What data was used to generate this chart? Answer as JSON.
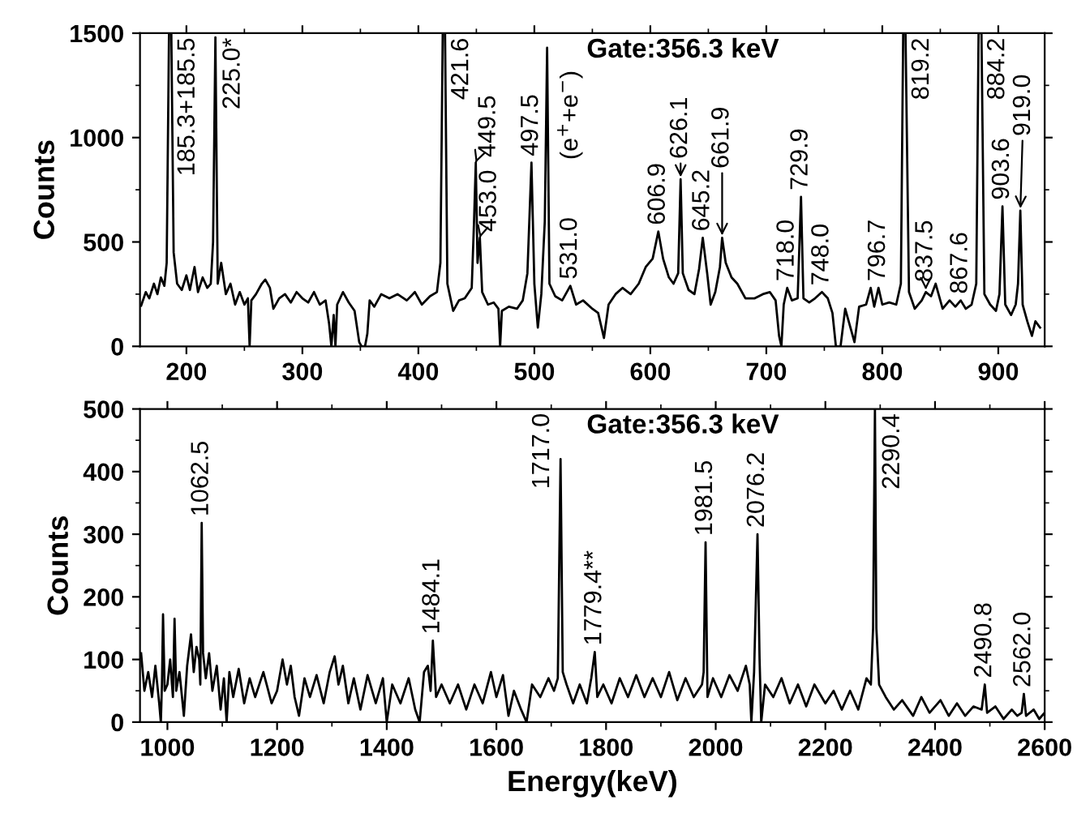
{
  "chart_data": [
    {
      "type": "line",
      "ylabel": "Counts",
      "xlim": [
        160,
        940
      ],
      "ylim": [
        0,
        1500
      ],
      "xticks": [
        200,
        300,
        400,
        500,
        600,
        700,
        800,
        900
      ],
      "yticks": [
        0,
        500,
        1000,
        1500
      ],
      "grid": false,
      "legend": false,
      "marker": "none",
      "line_style": "solid",
      "color": "#000000",
      "x": [
        161,
        165,
        168,
        172,
        175,
        178,
        181,
        183,
        185,
        187,
        189,
        192,
        196,
        200,
        203,
        207,
        210,
        214,
        218,
        221,
        223,
        225,
        227,
        230,
        234,
        238,
        242,
        246,
        250,
        253,
        254.5,
        256,
        260,
        265,
        268,
        272,
        275,
        280,
        285,
        290,
        295,
        300,
        305,
        310,
        315,
        320,
        323,
        325,
        327,
        328.5,
        330,
        335,
        340,
        345,
        349,
        351,
        354,
        356,
        358,
        362,
        368,
        375,
        382,
        390,
        397,
        403,
        410,
        416,
        419,
        421,
        423,
        425,
        430,
        435,
        440,
        446,
        448,
        449.5,
        451,
        453,
        455,
        460,
        465,
        469,
        470.5,
        472,
        478,
        485,
        490,
        494,
        497.5,
        500,
        503,
        506,
        509,
        511,
        513,
        518,
        524,
        531,
        536,
        542,
        550,
        555,
        560,
        564,
        570,
        576,
        583,
        590,
        596,
        602,
        606.9,
        611,
        616,
        620,
        624,
        626.1,
        628,
        633,
        638,
        642,
        645.2,
        649,
        652,
        656,
        660,
        661.9,
        665,
        670,
        675,
        682,
        690,
        697,
        703,
        708,
        711,
        713,
        715,
        718,
        722,
        727,
        729.9,
        732,
        737,
        742,
        748,
        753,
        757,
        760,
        764,
        768,
        773,
        776,
        780,
        786,
        790,
        793,
        796.7,
        800,
        806,
        812,
        816,
        818,
        820,
        823,
        828,
        834,
        837.5,
        842,
        846,
        852,
        858,
        863,
        867.6,
        872,
        877,
        881,
        883,
        885.5,
        888,
        893,
        898,
        901,
        903.6,
        906,
        911,
        915,
        917,
        919,
        921,
        925,
        929,
        932,
        936
      ],
      "values": [
        195,
        260,
        230,
        300,
        250,
        330,
        290,
        400,
        1500,
        1500,
        450,
        300,
        270,
        340,
        270,
        380,
        260,
        330,
        280,
        300,
        500,
        1480,
        300,
        400,
        250,
        300,
        200,
        260,
        200,
        230,
        0,
        220,
        250,
        300,
        320,
        280,
        180,
        230,
        250,
        210,
        260,
        230,
        210,
        260,
        200,
        220,
        110,
        0,
        150,
        0,
        200,
        260,
        210,
        170,
        20,
        0,
        0,
        60,
        220,
        190,
        250,
        230,
        250,
        220,
        260,
        200,
        240,
        260,
        400,
        1500,
        1500,
        300,
        170,
        220,
        230,
        280,
        600,
        880,
        400,
        520,
        260,
        200,
        210,
        180,
        0,
        170,
        190,
        180,
        220,
        350,
        880,
        300,
        90,
        250,
        600,
        1430,
        300,
        240,
        220,
        290,
        200,
        220,
        180,
        160,
        40,
        200,
        250,
        280,
        250,
        300,
        380,
        420,
        550,
        420,
        330,
        300,
        350,
        800,
        350,
        270,
        250,
        370,
        520,
        350,
        200,
        260,
        380,
        520,
        400,
        330,
        300,
        230,
        230,
        250,
        260,
        220,
        50,
        0,
        200,
        280,
        220,
        230,
        716,
        230,
        210,
        230,
        260,
        230,
        160,
        0,
        0,
        180,
        80,
        20,
        190,
        200,
        280,
        190,
        280,
        200,
        210,
        200,
        300,
        1500,
        1500,
        260,
        180,
        220,
        260,
        240,
        300,
        180,
        220,
        190,
        220,
        180,
        200,
        300,
        1500,
        1500,
        250,
        200,
        170,
        250,
        670,
        200,
        150,
        200,
        300,
        650,
        200,
        120,
        50,
        120,
        90
      ],
      "annotations": [
        {
          "text": "185.3+185.5",
          "x": 186,
          "y": 1500
        },
        {
          "text": "225.0*",
          "x": 225,
          "y": 1480
        },
        {
          "text": "421.6",
          "x": 422,
          "y": 1500
        },
        {
          "text": "449.5",
          "x": 449.5,
          "y": 880
        },
        {
          "text": "453.0",
          "x": 453,
          "y": 520
        },
        {
          "text": "497.5",
          "x": 497.5,
          "y": 880
        },
        {
          "text": "(e$^{+}$+e$^{−}$)",
          "x": 511,
          "y": 1430
        },
        {
          "text": "531.0",
          "x": 531,
          "y": 290
        },
        {
          "text": "606.9",
          "x": 606.9,
          "y": 550
        },
        {
          "text": "626.1",
          "x": 626.1,
          "y": 800
        },
        {
          "text": "645.2",
          "x": 645.2,
          "y": 520
        },
        {
          "text": "661.9",
          "x": 661.9,
          "y": 520
        },
        {
          "text": "718.0",
          "x": 718,
          "y": 280
        },
        {
          "text": "729.9",
          "x": 729.9,
          "y": 716
        },
        {
          "text": "748.0",
          "x": 748,
          "y": 260
        },
        {
          "text": "796.7",
          "x": 796.7,
          "y": 280
        },
        {
          "text": "819.2",
          "x": 819,
          "y": 1500
        },
        {
          "text": "837.5",
          "x": 837.5,
          "y": 260
        },
        {
          "text": "867.6",
          "x": 867.6,
          "y": 220
        },
        {
          "text": "884.2",
          "x": 884.2,
          "y": 1500
        },
        {
          "text": "903.6",
          "x": 903.6,
          "y": 670
        },
        {
          "text": "919.0",
          "x": 919,
          "y": 650
        },
        "Gate:356.3 keV"
      ]
    },
    {
      "type": "line",
      "xlabel": "Energy(keV)",
      "ylabel": "Counts",
      "xlim": [
        950,
        2600
      ],
      "ylim": [
        0,
        500
      ],
      "xticks": [
        1000,
        1200,
        1400,
        1600,
        1800,
        2000,
        2200,
        2400,
        2600
      ],
      "yticks": [
        0,
        100,
        200,
        300,
        400,
        500
      ],
      "grid": false,
      "legend": false,
      "marker": "none",
      "line_style": "solid",
      "color": "#000000",
      "x": [
        952,
        958,
        965,
        972,
        978,
        985,
        988,
        990,
        992,
        995,
        1000,
        1005,
        1010,
        1013,
        1016,
        1022,
        1030,
        1036,
        1043,
        1048,
        1053,
        1058,
        1060,
        1062.5,
        1065,
        1070,
        1076,
        1082,
        1090,
        1097,
        1103,
        1108,
        1113,
        1120,
        1130,
        1140,
        1150,
        1160,
        1175,
        1190,
        1200,
        1210,
        1218,
        1225,
        1232,
        1240,
        1250,
        1260,
        1272,
        1285,
        1296,
        1305,
        1312,
        1320,
        1330,
        1340,
        1352,
        1365,
        1380,
        1393,
        1400,
        1410,
        1425,
        1440,
        1452,
        1460,
        1468,
        1475,
        1480,
        1484.1,
        1490,
        1500,
        1515,
        1530,
        1545,
        1560,
        1575,
        1590,
        1600,
        1612,
        1622,
        1632,
        1645,
        1655,
        1665,
        1680,
        1695,
        1705,
        1712,
        1717,
        1721,
        1728,
        1740,
        1752,
        1765,
        1773,
        1779.4,
        1784,
        1795,
        1810,
        1825,
        1840,
        1855,
        1870,
        1885,
        1900,
        1915,
        1930,
        1945,
        1960,
        1975,
        1978,
        1981.5,
        1985,
        1995,
        2010,
        2025,
        2040,
        2055,
        2062,
        2065,
        2070,
        2076.2,
        2080,
        2083,
        2090,
        2105,
        2120,
        2135,
        2150,
        2165,
        2180,
        2200,
        2215,
        2230,
        2245,
        2260,
        2275,
        2283,
        2287,
        2290.4,
        2293,
        2298,
        2310,
        2325,
        2340,
        2360,
        2375,
        2390,
        2410,
        2425,
        2440,
        2455,
        2470,
        2485,
        2490.8,
        2495,
        2510,
        2525,
        2540,
        2550,
        2558,
        2562,
        2566,
        2580,
        2590,
        2600
      ],
      "values": [
        110,
        50,
        80,
        40,
        90,
        30,
        0,
        60,
        172,
        50,
        60,
        100,
        40,
        165,
        50,
        80,
        10,
        90,
        140,
        80,
        120,
        100,
        60,
        318,
        110,
        70,
        110,
        50,
        90,
        20,
        70,
        0,
        80,
        40,
        85,
        30,
        70,
        40,
        80,
        30,
        50,
        100,
        60,
        90,
        40,
        10,
        70,
        40,
        75,
        30,
        80,
        105,
        60,
        90,
        30,
        70,
        20,
        75,
        30,
        70,
        0,
        60,
        30,
        70,
        20,
        0,
        80,
        90,
        50,
        130,
        40,
        60,
        30,
        60,
        20,
        60,
        30,
        80,
        40,
        75,
        10,
        50,
        20,
        0,
        60,
        40,
        70,
        50,
        70,
        420,
        80,
        60,
        30,
        60,
        30,
        70,
        112,
        40,
        60,
        30,
        70,
        40,
        75,
        40,
        70,
        40,
        80,
        35,
        70,
        40,
        60,
        80,
        287,
        40,
        70,
        40,
        75,
        50,
        90,
        60,
        0,
        80,
        300,
        100,
        0,
        60,
        40,
        70,
        30,
        60,
        25,
        60,
        30,
        50,
        20,
        50,
        20,
        70,
        60,
        150,
        500,
        150,
        60,
        40,
        20,
        35,
        10,
        40,
        15,
        35,
        10,
        30,
        10,
        25,
        20,
        60,
        15,
        25,
        5,
        20,
        10,
        15,
        45,
        10,
        20,
        5,
        15
      ],
      "annotations": [
        {
          "text": "1062.5",
          "x": 1062.5,
          "y": 318
        },
        {
          "text": "1484.1",
          "x": 1484.1,
          "y": 130
        },
        {
          "text": "1717.0",
          "x": 1717,
          "y": 420
        },
        {
          "text": "1779.4**",
          "x": 1779.4,
          "y": 112
        },
        {
          "text": "1981.5",
          "x": 1981.5,
          "y": 287
        },
        {
          "text": "2076.2",
          "x": 2076.2,
          "y": 300
        },
        {
          "text": "2290.4",
          "x": 2290.4,
          "y": 500
        },
        {
          "text": "2490.8",
          "x": 2490.8,
          "y": 60
        },
        {
          "text": "2562.0",
          "x": 2562,
          "y": 45
        },
        "Gate:356.3 keV"
      ]
    }
  ]
}
